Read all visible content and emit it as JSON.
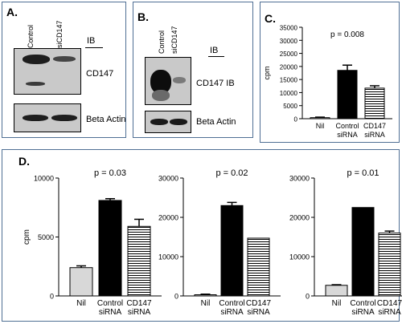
{
  "panelA": {
    "label": "A.",
    "lanes": [
      "Control",
      "siCD147"
    ],
    "ib": "IB",
    "blots": [
      "CD147",
      "Beta Actin"
    ]
  },
  "panelB": {
    "label": "B.",
    "lanes": [
      "Control",
      "siCD147"
    ],
    "ib": "IB",
    "blots": [
      "CD147 IB",
      "Beta Actin"
    ]
  },
  "panelD": {
    "label": "D."
  },
  "chart_data": [
    {
      "id": "C",
      "label": "C.",
      "type": "bar",
      "ylabel": "cpm",
      "ylim": [
        0,
        35000
      ],
      "yticks": [
        0,
        5000,
        10000,
        15000,
        20000,
        25000,
        30000,
        35000
      ],
      "annotation": "p = 0.008",
      "categories": [
        [
          "Nil"
        ],
        [
          "Control",
          "siRNA"
        ],
        [
          "CD147",
          "siRNA"
        ]
      ],
      "values": [
        400,
        18500,
        11700
      ],
      "errors": [
        200,
        2000,
        900
      ],
      "fills": [
        "#d8d8d8",
        "#000000",
        "stripes"
      ]
    },
    {
      "id": "D1",
      "type": "bar",
      "ylabel": "cpm",
      "ylim": [
        0,
        10000
      ],
      "yticks": [
        0,
        5000,
        10000
      ],
      "annotation": "p = 0.03",
      "categories": [
        [
          "Nil"
        ],
        [
          "Control",
          "siRNA"
        ],
        [
          "CD147",
          "siRNA"
        ]
      ],
      "values": [
        2400,
        8100,
        5900
      ],
      "errors": [
        150,
        150,
        600
      ],
      "fills": [
        "#d8d8d8",
        "#000000",
        "stripes"
      ]
    },
    {
      "id": "D2",
      "type": "bar",
      "ylabel": "",
      "ylim": [
        0,
        30000
      ],
      "yticks": [
        0,
        10000,
        20000,
        30000
      ],
      "annotation": "p = 0.02",
      "categories": [
        [
          "Nil"
        ],
        [
          "Control",
          "siRNA"
        ],
        [
          "CD147",
          "siRNA"
        ]
      ],
      "values": [
        300,
        23000,
        14700
      ],
      "errors": [
        150,
        800,
        0
      ],
      "fills": [
        "#d8d8d8",
        "#000000",
        "stripes"
      ]
    },
    {
      "id": "D3",
      "type": "bar",
      "ylabel": "",
      "ylim": [
        0,
        30000
      ],
      "yticks": [
        0,
        10000,
        20000,
        30000
      ],
      "annotation": "p = 0.01",
      "categories": [
        [
          "Nil"
        ],
        [
          "Control",
          "siRNA"
        ],
        [
          "CD147",
          "siRNA"
        ]
      ],
      "values": [
        2700,
        22500,
        16000
      ],
      "errors": [
        150,
        0,
        500
      ],
      "fills": [
        "#d8d8d8",
        "#000000",
        "stripes"
      ]
    }
  ]
}
